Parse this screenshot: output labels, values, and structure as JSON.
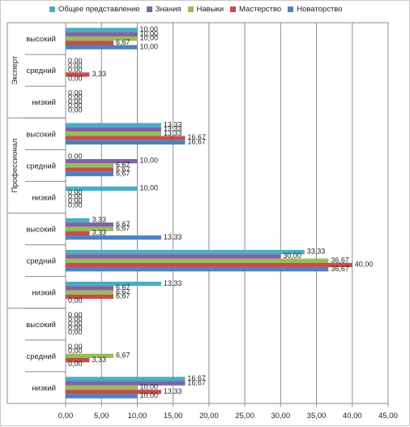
{
  "chart_data": {
    "type": "bar",
    "orientation": "horizontal",
    "xlim": [
      0,
      45
    ],
    "xticks": [
      "0,00",
      "5,00",
      "10,00",
      "15,00",
      "20,00",
      "25,00",
      "30,00",
      "35,00",
      "40,00",
      "45,00"
    ],
    "grid": true,
    "legend_position": "top",
    "series": [
      {
        "name": "Общее представление",
        "color": "#4bacc6"
      },
      {
        "name": "Знания",
        "color": "#8064a2"
      },
      {
        "name": "Навыки",
        "color": "#9bbb59"
      },
      {
        "name": "Мастерство",
        "color": "#c0504d"
      },
      {
        "name": "Новаторство",
        "color": "#4f81bd"
      }
    ],
    "groups": [
      {
        "name": "Эксперт",
        "categories": [
          {
            "label": "высокий",
            "values": [
              10.0,
              10.0,
              10.0,
              6.67,
              10.0
            ],
            "labels": [
              "10,00",
              "10,00",
              "10,00",
              "6,67",
              "10,00"
            ]
          },
          {
            "label": "средний",
            "values": [
              0.0,
              0.0,
              0.0,
              3.33,
              0.0
            ],
            "labels": [
              "0,00",
              "0,00",
              "0,00",
              "3,33",
              "0,00"
            ]
          },
          {
            "label": "низкий",
            "values": [
              0.0,
              0.0,
              0.0,
              0.0,
              0.0
            ],
            "labels": [
              "0,00",
              "0,00",
              "0,00",
              "0,00",
              "0,00"
            ]
          }
        ]
      },
      {
        "name": "Профессионал",
        "categories": [
          {
            "label": "высокий",
            "values": [
              13.33,
              13.33,
              13.33,
              16.67,
              16.67
            ],
            "labels": [
              "13,33",
              "13,33",
              "13,33",
              "16,67",
              "16,67"
            ]
          },
          {
            "label": "средний",
            "values": [
              0.0,
              10.0,
              6.67,
              6.67,
              6.67
            ],
            "labels": [
              "0,00",
              "10,00",
              "6,67",
              "6,67",
              "6,67"
            ]
          },
          {
            "label": "низкий",
            "values": [
              10.0,
              0.0,
              0.0,
              0.0,
              0.0
            ],
            "labels": [
              "10,00",
              "0,00",
              "0,00",
              "0,00",
              "0,00"
            ]
          }
        ]
      },
      {
        "name": "",
        "categories": [
          {
            "label": "высокий",
            "values": [
              3.33,
              6.67,
              6.67,
              3.33,
              13.33
            ],
            "labels": [
              "3,33",
              "6,67",
              "6,67",
              "3,33",
              "13,33"
            ]
          },
          {
            "label": "средний",
            "values": [
              33.33,
              30.0,
              36.67,
              40.0,
              36.67
            ],
            "labels": [
              "33,33",
              "30,00",
              "36,67",
              "40,00",
              "36,67"
            ]
          },
          {
            "label": "низкий",
            "values": [
              13.33,
              6.67,
              6.67,
              6.67,
              0.0
            ],
            "labels": [
              "13,33",
              "6,67",
              "6,67",
              "6,67",
              "0,00"
            ]
          }
        ]
      },
      {
        "name": "",
        "categories": [
          {
            "label": "высокий",
            "values": [
              0.0,
              0.0,
              0.0,
              0.0,
              0.0
            ],
            "labels": [
              "0,00",
              "0,00",
              "0,00",
              "0,00",
              "0,00"
            ]
          },
          {
            "label": "средний",
            "values": [
              0.0,
              0.0,
              6.67,
              3.33,
              0.0
            ],
            "labels": [
              "0,00",
              "0,00",
              "6,67",
              "3,33",
              "0,00"
            ]
          },
          {
            "label": "низкий",
            "values": [
              16.67,
              16.67,
              10.0,
              13.33,
              10.0
            ],
            "labels": [
              "16,67",
              "16,67",
              "10,00",
              "13,33",
              "10,00"
            ]
          }
        ]
      }
    ]
  }
}
